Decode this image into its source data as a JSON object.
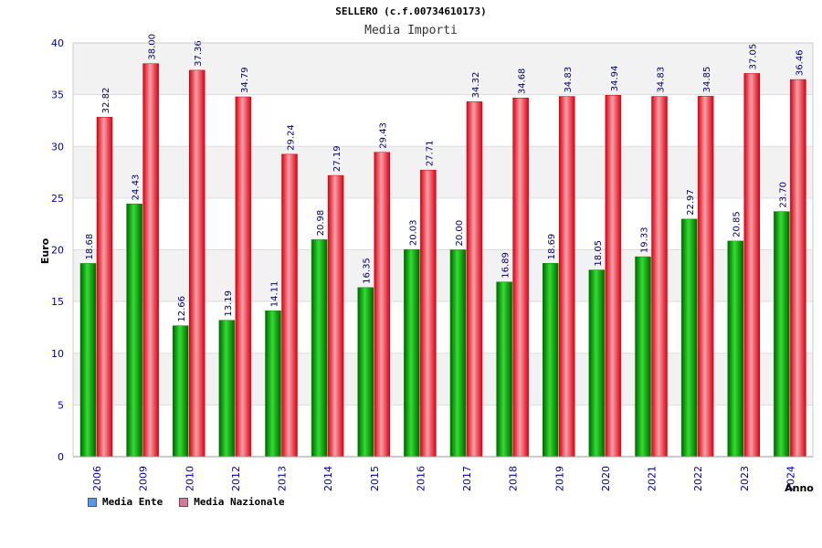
{
  "chart_data": {
    "type": "bar",
    "title": "SELLERO (c.f.00734610173)",
    "subtitle": "Media Importi",
    "xlabel": "Anno",
    "ylabel": "Euro",
    "ylim": [
      0,
      40
    ],
    "yticks": [
      0,
      5,
      10,
      15,
      20,
      25,
      30,
      35,
      40
    ],
    "categories": [
      "2006",
      "2009",
      "2010",
      "2012",
      "2013",
      "2014",
      "2015",
      "2016",
      "2017",
      "2018",
      "2019",
      "2020",
      "2021",
      "2022",
      "2023",
      "2024"
    ],
    "series": [
      {
        "name": "Media Ente",
        "color": "#00aa00",
        "values": [
          18.68,
          24.43,
          12.66,
          13.19,
          14.11,
          20.98,
          16.35,
          20.03,
          20.0,
          16.89,
          18.69,
          18.05,
          19.33,
          22.97,
          20.85,
          23.7
        ],
        "labels": [
          "18.68",
          "24.43",
          "12.66",
          "13.19",
          "14.11",
          "20.98",
          "16.35",
          "20.03",
          "20.00",
          "16.89",
          "18.69",
          "18.05",
          "19.33",
          "22.97",
          "20.85",
          "23.70"
        ]
      },
      {
        "name": "Media Nazionale",
        "color": "#ee1122",
        "values": [
          32.82,
          38.0,
          37.36,
          34.79,
          29.24,
          27.19,
          29.43,
          27.71,
          34.32,
          34.68,
          34.83,
          34.94,
          34.83,
          34.85,
          37.05,
          36.46
        ],
        "labels": [
          "32.82",
          "38.00",
          "37.36",
          "34.79",
          "29.24",
          "27.19",
          "29.43",
          "27.71",
          "34.32",
          "34.68",
          "34.83",
          "34.94",
          "34.83",
          "34.85",
          "37.05",
          "36.46"
        ]
      }
    ],
    "legend": {
      "position": "bottom-left",
      "items": [
        {
          "label": "Media Ente",
          "color": "#5599ee"
        },
        {
          "label": "Media Nazionale",
          "color": "#dd7799"
        }
      ]
    },
    "colors": {
      "band": "#f2f2f2",
      "grid": "#dddddd",
      "axis_text": "#0000aa",
      "value_text": "#000066"
    }
  }
}
